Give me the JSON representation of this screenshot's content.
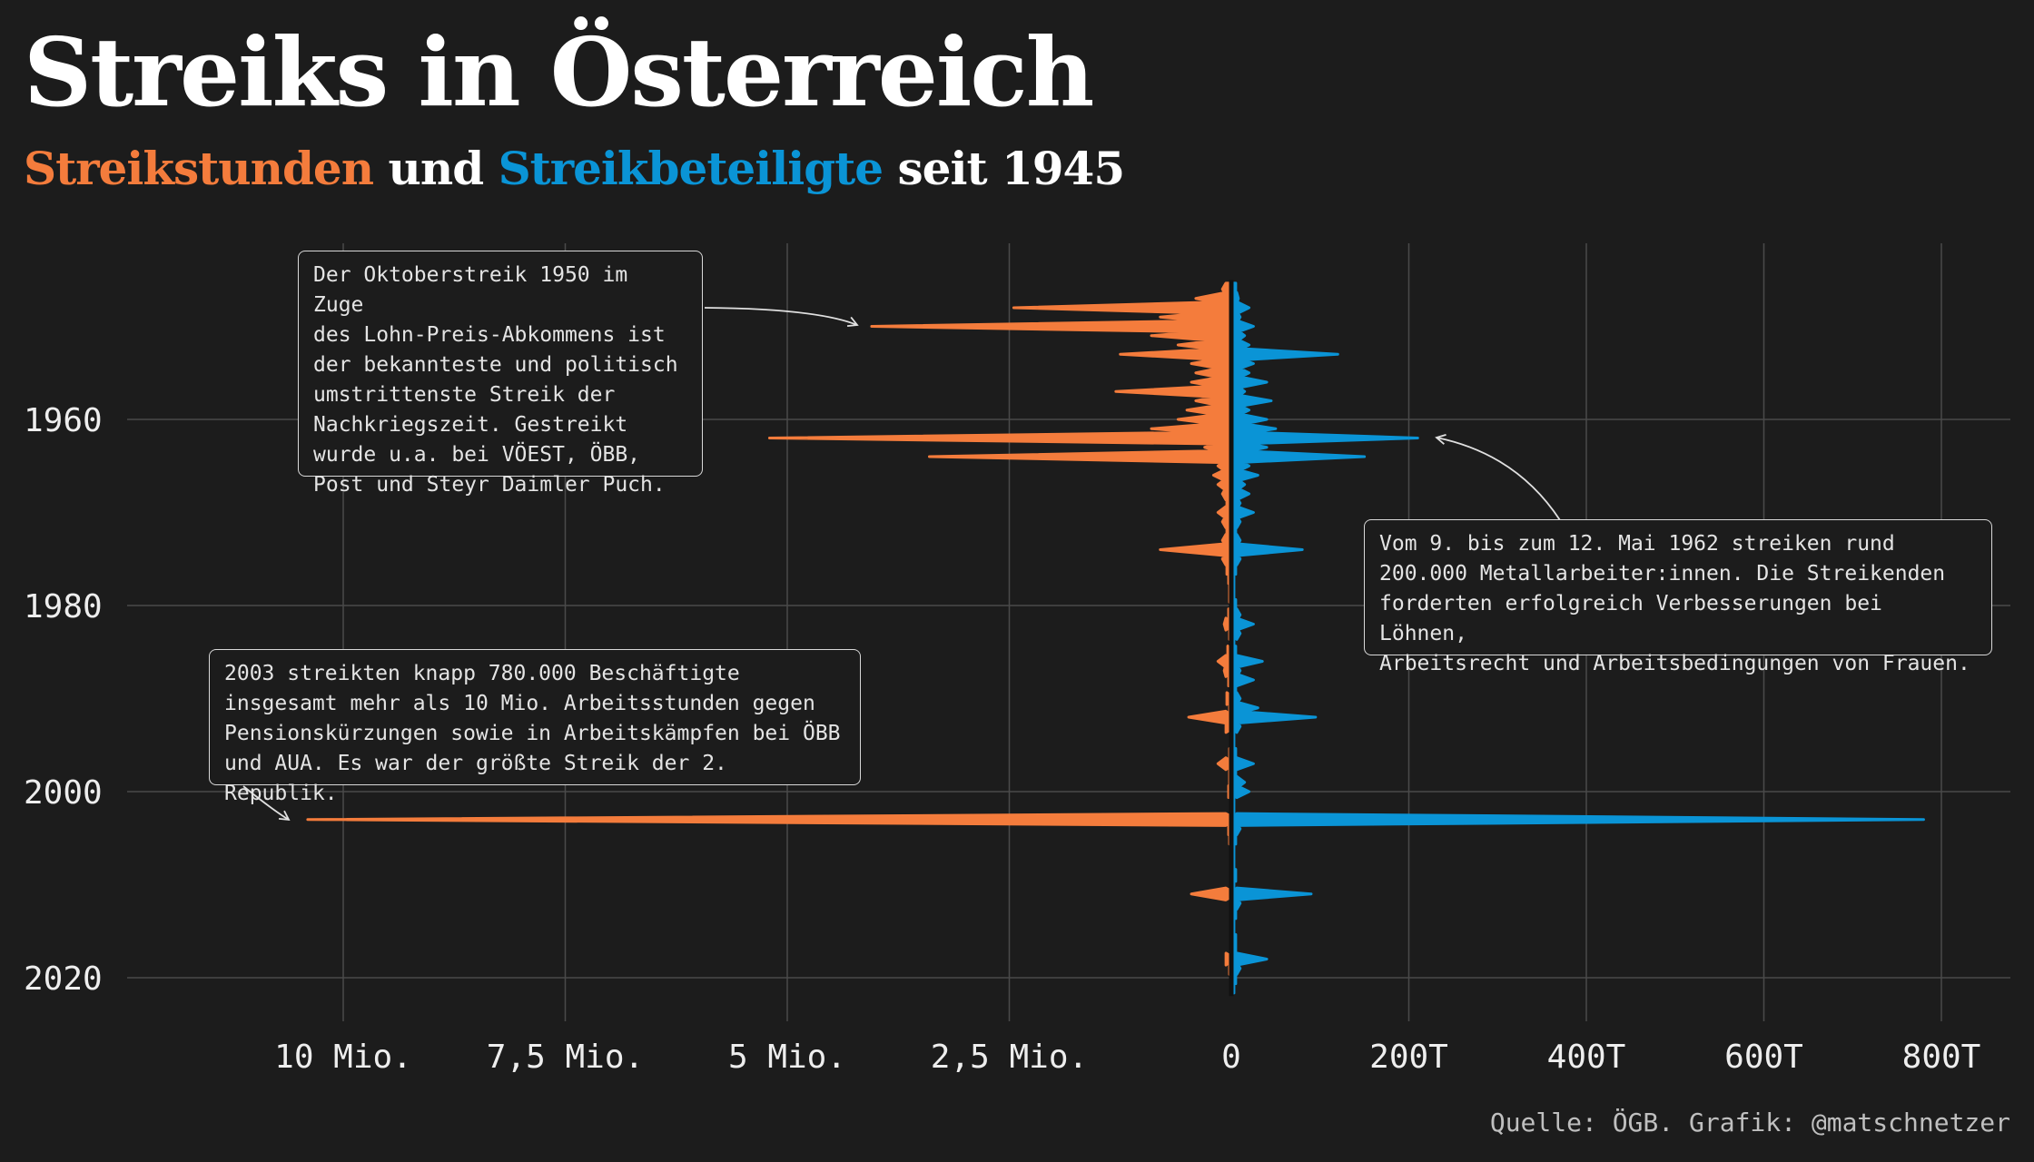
{
  "title": "Streiks in Österreich",
  "subtitle": {
    "part1": "Streikstunden",
    "part2": " und ",
    "part3": "Streikbeteiligte",
    "part4": " seit 1945"
  },
  "colors": {
    "hours": "#f47c3c",
    "participants": "#0a94d6",
    "background": "#1c1c1c",
    "grid": "#555555"
  },
  "annotations": {
    "oktober": "Der Oktoberstreik 1950 im Zuge\ndes Lohn-Preis-Abkommens ist\nder bekannteste und politisch\numstrittenste Streik der\nNachkriegszeit. Gestreikt\nwurde u.a. bei VÖEST, ÖBB,\nPost und Steyr Daimler Puch.",
    "mai1962": "Vom 9. bis zum 12. Mai 1962 streiken rund\n200.000 Metallarbeiter:innen. Die Streikenden\nforderten erfolgreich Verbesserungen bei Löhnen,\nArbeitsrecht und Arbeitsbedingungen von Frauen.",
    "y2003": "2003 streikten knapp 780.000 Beschäftigte\ninsgesamt mehr als 10 Mio. Arbeitsstunden gegen\nPensionskürzungen sowie in Arbeitskämpfen bei ÖBB\nund AUA. Es war der größte Streik der 2. Republik."
  },
  "source": "Quelle: ÖGB. Grafik: @matschnetzer",
  "chart_data": {
    "type": "area",
    "title": "Streiks in Österreich",
    "subtitle": "Streikstunden und Streikbeteiligte seit 1945",
    "y_axis": {
      "ticks": [
        1960,
        1980,
        2000,
        2020
      ],
      "range": [
        1946,
        2021
      ]
    },
    "x_axis_left": {
      "series": "Streikstunden",
      "ticks": [
        10000000,
        7500000,
        5000000,
        2500000,
        0
      ],
      "tick_labels": [
        "10 Mio.",
        "7,5 Mio.",
        "5 Mio.",
        "2,5 Mio.",
        "0"
      ]
    },
    "x_axis_right": {
      "series": "Streikbeteiligte",
      "ticks": [
        0,
        200000,
        400000,
        600000,
        800000
      ],
      "tick_labels": [
        "0",
        "200T",
        "400T",
        "600T",
        "800T"
      ]
    },
    "grid": true,
    "series": [
      {
        "name": "Streikstunden",
        "side": "left",
        "points": [
          [
            1946,
            100000
          ],
          [
            1947,
            400000
          ],
          [
            1948,
            2450000
          ],
          [
            1949,
            800000
          ],
          [
            1950,
            4050000
          ],
          [
            1951,
            900000
          ],
          [
            1952,
            600000
          ],
          [
            1953,
            1250000
          ],
          [
            1954,
            450000
          ],
          [
            1955,
            400000
          ],
          [
            1956,
            450000
          ],
          [
            1957,
            1300000
          ],
          [
            1958,
            400000
          ],
          [
            1959,
            500000
          ],
          [
            1960,
            600000
          ],
          [
            1961,
            900000
          ],
          [
            1962,
            5200000
          ],
          [
            1963,
            300000
          ],
          [
            1964,
            3400000
          ],
          [
            1965,
            150000
          ],
          [
            1966,
            200000
          ],
          [
            1967,
            150000
          ],
          [
            1968,
            100000
          ],
          [
            1969,
            50000
          ],
          [
            1970,
            150000
          ],
          [
            1971,
            100000
          ],
          [
            1972,
            50000
          ],
          [
            1973,
            100000
          ],
          [
            1974,
            800000
          ],
          [
            1975,
            100000
          ],
          [
            1976,
            50000
          ],
          [
            1977,
            30000
          ],
          [
            1978,
            20000
          ],
          [
            1979,
            20000
          ],
          [
            1980,
            10000
          ],
          [
            1981,
            30000
          ],
          [
            1982,
            80000
          ],
          [
            1983,
            20000
          ],
          [
            1984,
            10000
          ],
          [
            1985,
            40000
          ],
          [
            1986,
            150000
          ],
          [
            1987,
            80000
          ],
          [
            1988,
            30000
          ],
          [
            1989,
            10000
          ],
          [
            1990,
            50000
          ],
          [
            1991,
            20000
          ],
          [
            1992,
            480000
          ],
          [
            1993,
            60000
          ],
          [
            1994,
            10000
          ],
          [
            1995,
            10000
          ],
          [
            1996,
            20000
          ],
          [
            1997,
            150000
          ],
          [
            1998,
            20000
          ],
          [
            1999,
            20000
          ],
          [
            2000,
            30000
          ],
          [
            2001,
            5000
          ],
          [
            2002,
            5000
          ],
          [
            2003,
            10400000
          ],
          [
            2004,
            30000
          ],
          [
            2005,
            20000
          ],
          [
            2006,
            5000
          ],
          [
            2007,
            5000
          ],
          [
            2008,
            10000
          ],
          [
            2009,
            10000
          ],
          [
            2010,
            10000
          ],
          [
            2011,
            450000
          ],
          [
            2012,
            10000
          ],
          [
            2013,
            5000
          ],
          [
            2014,
            5000
          ],
          [
            2015,
            5000
          ],
          [
            2016,
            10000
          ],
          [
            2017,
            10000
          ],
          [
            2018,
            60000
          ],
          [
            2019,
            20000
          ],
          [
            2020,
            10000
          ],
          [
            2021,
            5000
          ]
        ]
      },
      {
        "name": "Streikbeteiligte",
        "side": "right",
        "points": [
          [
            1946,
            5000
          ],
          [
            1947,
            8000
          ],
          [
            1948,
            20000
          ],
          [
            1949,
            10000
          ],
          [
            1950,
            25000
          ],
          [
            1951,
            15000
          ],
          [
            1952,
            20000
          ],
          [
            1953,
            120000
          ],
          [
            1954,
            25000
          ],
          [
            1955,
            20000
          ],
          [
            1956,
            40000
          ],
          [
            1957,
            15000
          ],
          [
            1958,
            45000
          ],
          [
            1959,
            20000
          ],
          [
            1960,
            40000
          ],
          [
            1961,
            50000
          ],
          [
            1962,
            210000
          ],
          [
            1963,
            40000
          ],
          [
            1964,
            150000
          ],
          [
            1965,
            20000
          ],
          [
            1966,
            30000
          ],
          [
            1967,
            15000
          ],
          [
            1968,
            20000
          ],
          [
            1969,
            10000
          ],
          [
            1970,
            25000
          ],
          [
            1971,
            10000
          ],
          [
            1972,
            5000
          ],
          [
            1973,
            10000
          ],
          [
            1974,
            80000
          ],
          [
            1975,
            10000
          ],
          [
            1976,
            5000
          ],
          [
            1977,
            3000
          ],
          [
            1978,
            3000
          ],
          [
            1979,
            3000
          ],
          [
            1980,
            5000
          ],
          [
            1981,
            10000
          ],
          [
            1982,
            25000
          ],
          [
            1983,
            10000
          ],
          [
            1984,
            3000
          ],
          [
            1985,
            5000
          ],
          [
            1986,
            35000
          ],
          [
            1987,
            10000
          ],
          [
            1988,
            25000
          ],
          [
            1989,
            5000
          ],
          [
            1990,
            10000
          ],
          [
            1991,
            30000
          ],
          [
            1992,
            95000
          ],
          [
            1993,
            10000
          ],
          [
            1994,
            3000
          ],
          [
            1995,
            3000
          ],
          [
            1996,
            5000
          ],
          [
            1997,
            25000
          ],
          [
            1998,
            5000
          ],
          [
            1999,
            15000
          ],
          [
            2000,
            20000
          ],
          [
            2001,
            3000
          ],
          [
            2002,
            3000
          ],
          [
            2003,
            780000
          ],
          [
            2004,
            10000
          ],
          [
            2005,
            5000
          ],
          [
            2006,
            3000
          ],
          [
            2007,
            3000
          ],
          [
            2008,
            3000
          ],
          [
            2009,
            5000
          ],
          [
            2010,
            3000
          ],
          [
            2011,
            90000
          ],
          [
            2012,
            10000
          ],
          [
            2013,
            5000
          ],
          [
            2014,
            3000
          ],
          [
            2015,
            3000
          ],
          [
            2016,
            5000
          ],
          [
            2017,
            5000
          ],
          [
            2018,
            40000
          ],
          [
            2019,
            10000
          ],
          [
            2020,
            5000
          ],
          [
            2021,
            3000
          ]
        ]
      }
    ]
  }
}
